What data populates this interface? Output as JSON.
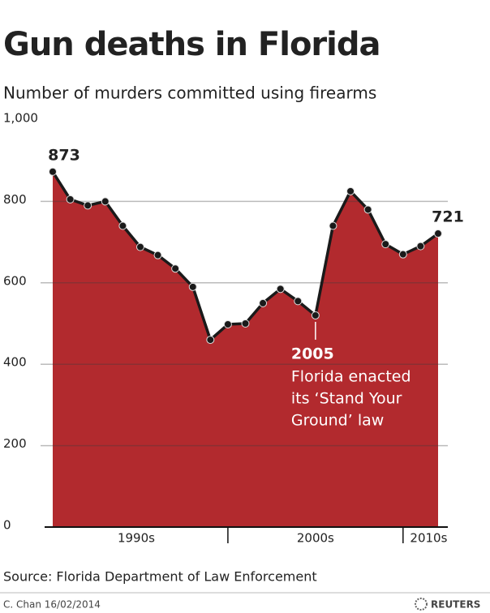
{
  "chart_data": {
    "type": "area",
    "title": "Gun deaths in Florida",
    "subtitle": "Number of murders committed using firearms",
    "categories": [
      null,
      null,
      null,
      null,
      null,
      null,
      null,
      null,
      null,
      null,
      null,
      null,
      null,
      null,
      null,
      null,
      null,
      null,
      null,
      null,
      null,
      null,
      null
    ],
    "values": [
      873,
      805,
      790,
      800,
      740,
      688,
      668,
      635,
      590,
      460,
      498,
      500,
      550,
      585,
      555,
      520,
      740,
      825,
      780,
      695,
      670,
      690,
      721
    ],
    "value_labels": [
      "873",
      null,
      null,
      null,
      null,
      null,
      null,
      null,
      null,
      null,
      null,
      null,
      null,
      null,
      null,
      null,
      null,
      null,
      null,
      null,
      null,
      null,
      "721"
    ],
    "color": "#b22a2e",
    "line_color": "#1a1a1a",
    "decades": [
      {
        "label": "1990s",
        "count": 10
      },
      {
        "label": "2000s",
        "count": 10
      },
      {
        "label": "2010s",
        "count": 3
      }
    ],
    "ylim": [
      0,
      1000
    ],
    "yticks": [
      0,
      200,
      400,
      600,
      800,
      {
        "value": 1000,
        "label": "1,000"
      }
    ],
    "grid": true,
    "annotation": {
      "category_index": 15,
      "title": "2005",
      "lines": [
        "Florida enacted",
        "its ‘Stand Your",
        "Ground’ law"
      ]
    },
    "source": "Source: Florida Department of Law Enforcement",
    "credit": "C. Chan  16/02/2014",
    "brand": "REUTERS"
  }
}
